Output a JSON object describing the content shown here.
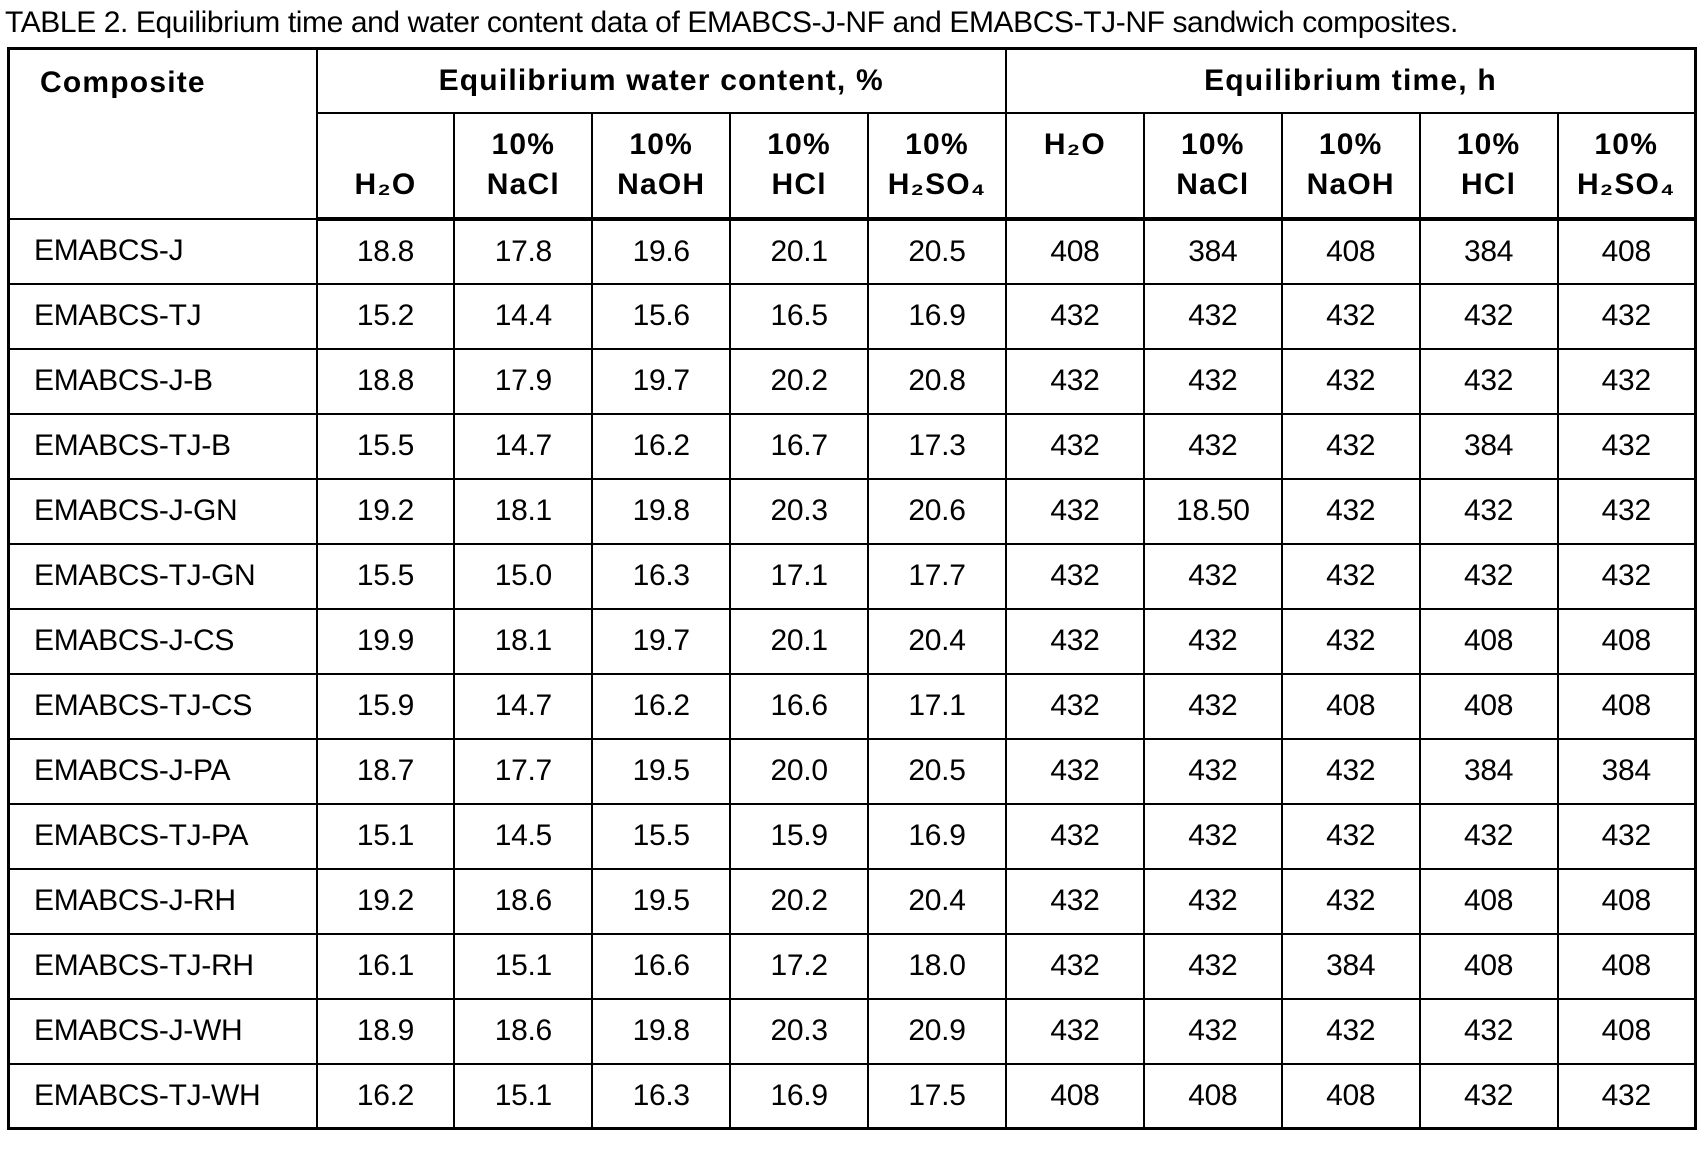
{
  "title": "TABLE 2. Equilibrium time and water content data of EMABCS-J-NF and EMABCS-TJ-NF sandwich composites.",
  "table": {
    "composite_header": "Composite",
    "groups": [
      {
        "label": "Equilibrium water content, %"
      },
      {
        "label": "Equilibrium time, h"
      }
    ],
    "water_columns": [
      {
        "line1": "",
        "line2": "H₂O"
      },
      {
        "line1": "10%",
        "line2": "NaCl"
      },
      {
        "line1": "10%",
        "line2": "NaOH"
      },
      {
        "line1": "10%",
        "line2": "HCl"
      },
      {
        "line1": "10%",
        "line2": "H₂SO₄"
      }
    ],
    "time_columns": [
      {
        "line1": "H₂O",
        "line2": ""
      },
      {
        "line1": "10%",
        "line2": "NaCl"
      },
      {
        "line1": "10%",
        "line2": "NaOH"
      },
      {
        "line1": "10%",
        "line2": "HCl"
      },
      {
        "line1": "10%",
        "line2": "H₂SO₄"
      }
    ],
    "rows": [
      {
        "composite": "EMABCS-J",
        "water": [
          "18.8",
          "17.8",
          "19.6",
          "20.1",
          "20.5"
        ],
        "time": [
          "408",
          "384",
          "408",
          "384",
          "408"
        ]
      },
      {
        "composite": "EMABCS-TJ",
        "water": [
          "15.2",
          "14.4",
          "15.6",
          "16.5",
          "16.9"
        ],
        "time": [
          "432",
          "432",
          "432",
          "432",
          "432"
        ]
      },
      {
        "composite": "EMABCS-J-B",
        "water": [
          "18.8",
          "17.9",
          "19.7",
          "20.2",
          "20.8"
        ],
        "time": [
          "432",
          "432",
          "432",
          "432",
          "432"
        ]
      },
      {
        "composite": "EMABCS-TJ-B",
        "water": [
          "15.5",
          "14.7",
          "16.2",
          "16.7",
          "17.3"
        ],
        "time": [
          "432",
          "432",
          "432",
          "384",
          "432"
        ]
      },
      {
        "composite": "EMABCS-J-GN",
        "water": [
          "19.2",
          "18.1",
          "19.8",
          "20.3",
          "20.6"
        ],
        "time": [
          "432",
          "18.50",
          "432",
          "432",
          "432"
        ]
      },
      {
        "composite": "EMABCS-TJ-GN",
        "water": [
          "15.5",
          "15.0",
          "16.3",
          "17.1",
          "17.7"
        ],
        "time": [
          "432",
          "432",
          "432",
          "432",
          "432"
        ]
      },
      {
        "composite": "EMABCS-J-CS",
        "water": [
          "19.9",
          "18.1",
          "19.7",
          "20.1",
          "20.4"
        ],
        "time": [
          "432",
          "432",
          "432",
          "408",
          "408"
        ]
      },
      {
        "composite": "EMABCS-TJ-CS",
        "water": [
          "15.9",
          "14.7",
          "16.2",
          "16.6",
          "17.1"
        ],
        "time": [
          "432",
          "432",
          "408",
          "408",
          "408"
        ]
      },
      {
        "composite": "EMABCS-J-PA",
        "water": [
          "18.7",
          "17.7",
          "19.5",
          "20.0",
          "20.5"
        ],
        "time": [
          "432",
          "432",
          "432",
          "384",
          "384"
        ]
      },
      {
        "composite": "EMABCS-TJ-PA",
        "water": [
          "15.1",
          "14.5",
          "15.5",
          "15.9",
          "16.9"
        ],
        "time": [
          "432",
          "432",
          "432",
          "432",
          "432"
        ]
      },
      {
        "composite": "EMABCS-J-RH",
        "water": [
          "19.2",
          "18.6",
          "19.5",
          "20.2",
          "20.4"
        ],
        "time": [
          "432",
          "432",
          "432",
          "408",
          "408"
        ]
      },
      {
        "composite": "EMABCS-TJ-RH",
        "water": [
          "16.1",
          "15.1",
          "16.6",
          "17.2",
          "18.0"
        ],
        "time": [
          "432",
          "432",
          "384",
          "408",
          "408"
        ]
      },
      {
        "composite": "EMABCS-J-WH",
        "water": [
          "18.9",
          "18.6",
          "19.8",
          "20.3",
          "20.9"
        ],
        "time": [
          "432",
          "432",
          "432",
          "432",
          "408"
        ]
      },
      {
        "composite": "EMABCS-TJ-WH",
        "water": [
          "16.2",
          "15.1",
          "16.3",
          "16.9",
          "17.5"
        ],
        "time": [
          "408",
          "408",
          "408",
          "432",
          "432"
        ]
      }
    ]
  }
}
